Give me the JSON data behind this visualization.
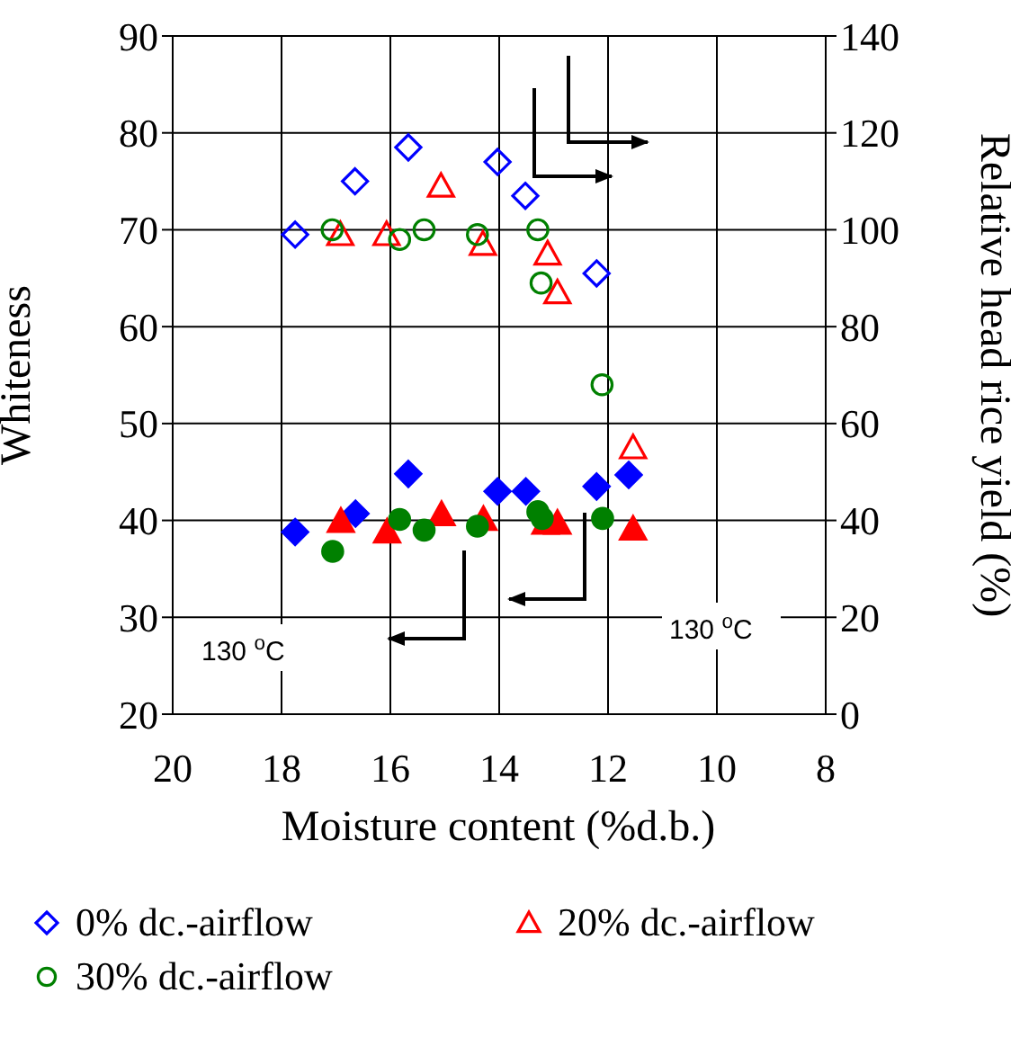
{
  "chart_data": {
    "type": "scatter",
    "xlabel": "Moisture content (%d.b.)",
    "ylabel": "Whiteness",
    "y2label": "Relative head rice yield (%)",
    "xlim": [
      20,
      8
    ],
    "xticks": [
      20,
      18,
      16,
      14,
      12,
      10,
      8
    ],
    "ylim": [
      20,
      90
    ],
    "yticks": [
      20,
      30,
      40,
      50,
      60,
      70,
      80,
      90
    ],
    "y2lim": [
      0,
      140
    ],
    "y2ticks": [
      0,
      20,
      40,
      60,
      80,
      100,
      120,
      140
    ],
    "grid": true,
    "legend": "bottom",
    "annotations": [
      "130 $^{o}$C",
      "130 $^{o}$C"
    ],
    "series": [
      {
        "name": "0% dc.-airflow",
        "color": "#0000ff",
        "marker": "diamond",
        "axis": "y2",
        "x": [
          17.75,
          16.65,
          15.67,
          14.03,
          13.52,
          12.21
        ],
        "values": [
          99,
          110,
          117,
          114,
          107,
          91
        ]
      },
      {
        "name": "20% dc.-airflow",
        "color": "#ff0000",
        "marker": "triangle",
        "axis": "y2",
        "x": [
          16.92,
          16.07,
          15.07,
          14.3,
          13.11,
          12.93,
          11.54
        ],
        "values": [
          99,
          99,
          109,
          97,
          95,
          87,
          55
        ]
      },
      {
        "name": "30% dc.-airflow",
        "color": "#008000",
        "marker": "circle",
        "axis": "y2",
        "x": [
          17.07,
          15.83,
          15.38,
          14.4,
          13.29,
          13.23,
          12.11
        ],
        "values": [
          100,
          98,
          100,
          99,
          100,
          89,
          68
        ]
      },
      {
        "color": "#0000ff",
        "marker": "diamond",
        "axis": "y",
        "x": [
          17.75,
          16.64,
          15.67,
          14.03,
          13.51,
          12.21,
          11.62
        ],
        "values": [
          38.8,
          40.7,
          44.8,
          43,
          43,
          43.5,
          44.7
        ]
      },
      {
        "color": "#ff0000",
        "marker": "triangle",
        "axis": "y",
        "x": [
          16.91,
          16.06,
          15.06,
          14.29,
          13.15,
          12.93,
          11.54
        ],
        "values": [
          39.9,
          38.8,
          40.6,
          40.1,
          39.7,
          39.7,
          39.1
        ]
      },
      {
        "color": "#008000",
        "marker": "circle",
        "axis": "y",
        "x": [
          17.06,
          15.83,
          15.38,
          14.4,
          13.29,
          13.21,
          12.1
        ],
        "values": [
          36.8,
          40.1,
          39,
          39.4,
          40.9,
          40.2,
          40.2
        ]
      }
    ]
  }
}
